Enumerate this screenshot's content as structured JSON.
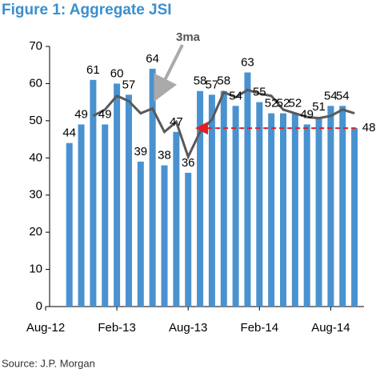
{
  "chart_data": {
    "type": "bar",
    "title": "Figure 1: Aggregate JSI",
    "source": "Source: J.P. Morgan",
    "annotation": "3ma",
    "categories": [
      "Aug-12",
      null,
      null,
      null,
      null,
      null,
      "Feb-13",
      null,
      null,
      null,
      null,
      null,
      "Aug-13",
      null,
      null,
      null,
      null,
      null,
      "Feb-14",
      null,
      null,
      null,
      null,
      null,
      "Aug-14",
      null,
      null
    ],
    "series": [
      {
        "name": "JSI",
        "type": "bar",
        "color": "#4a92cf",
        "values": [
          null,
          null,
          44,
          49,
          61,
          49,
          60,
          57,
          39,
          64,
          38,
          47,
          36,
          58,
          57,
          58,
          54,
          63,
          55,
          52,
          52,
          52,
          49,
          51,
          54,
          54,
          48
        ]
      },
      {
        "name": "3ma",
        "type": "line",
        "color": "#595959",
        "values": [
          null,
          null,
          null,
          null,
          51.3,
          53,
          56.7,
          55.3,
          52,
          53.3,
          47,
          49.7,
          40.3,
          47,
          50.3,
          57.7,
          56.3,
          58.3,
          57.3,
          56.7,
          53,
          52,
          51,
          50.7,
          51.3,
          53,
          52
        ]
      }
    ],
    "ylim": [
      0,
      70
    ],
    "yticks": [
      0,
      10,
      20,
      30,
      40,
      50,
      60,
      70
    ]
  }
}
